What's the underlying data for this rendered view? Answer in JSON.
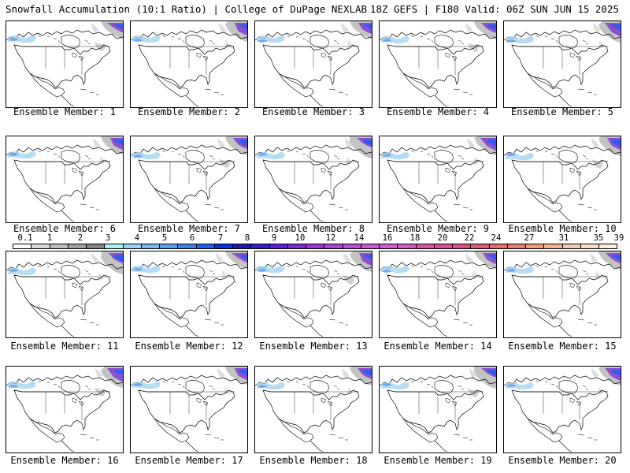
{
  "header": {
    "title": "Snowfall Accumulation (10:1 Ratio) | College of DuPage NEXLAB",
    "run_info": "18Z GEFS | F180 Valid: 06Z SUN JUN 15 2025"
  },
  "members": [
    {
      "label": "Ensemble Member: 1"
    },
    {
      "label": "Ensemble Member: 2"
    },
    {
      "label": "Ensemble Member: 3"
    },
    {
      "label": "Ensemble Member: 4"
    },
    {
      "label": "Ensemble Member: 5"
    },
    {
      "label": "Ensemble Member: 6"
    },
    {
      "label": "Ensemble Member: 7"
    },
    {
      "label": "Ensemble Member: 8"
    },
    {
      "label": "Ensemble Member: 9"
    },
    {
      "label": "Ensemble Member: 10"
    },
    {
      "label": "Ensemble Member: 11"
    },
    {
      "label": "Ensemble Member: 12"
    },
    {
      "label": "Ensemble Member: 13"
    },
    {
      "label": "Ensemble Member: 14"
    },
    {
      "label": "Ensemble Member: 15"
    },
    {
      "label": "Ensemble Member: 16"
    },
    {
      "label": "Ensemble Member: 17"
    },
    {
      "label": "Ensemble Member: 18"
    },
    {
      "label": "Ensemble Member: 19"
    },
    {
      "label": "Ensemble Member: 20"
    }
  ],
  "colorbar": {
    "labels": [
      "0.1",
      "1",
      "2",
      "3",
      "4",
      "5",
      "6",
      "7",
      "8",
      "9",
      "10",
      "12",
      "14",
      "16",
      "18",
      "20",
      "22",
      "24",
      "27",
      "31",
      "35",
      "39"
    ],
    "colors": [
      "#ffffff",
      "#d9d9d9",
      "#bdbdbd",
      "#a0a0a0",
      "#838383",
      "#a8f0f0",
      "#9ed1ef",
      "#7ab6f0",
      "#5a9cf0",
      "#3c7ff0",
      "#1e5ef0",
      "#0b2fe6",
      "#1a1ab0",
      "#3a1ad0",
      "#5f1fd8",
      "#7a2ad8",
      "#9536d8",
      "#a945d8",
      "#b84ed8",
      "#c45bd0",
      "#cf5ec8",
      "#d45ab8",
      "#d950a8",
      "#dc4c98",
      "#de4e85",
      "#e05a72",
      "#e46c6c",
      "#e88070",
      "#ed9a80",
      "#f1b495",
      "#f5c9ad",
      "#f8dcc5",
      "#fcefe0"
    ]
  }
}
